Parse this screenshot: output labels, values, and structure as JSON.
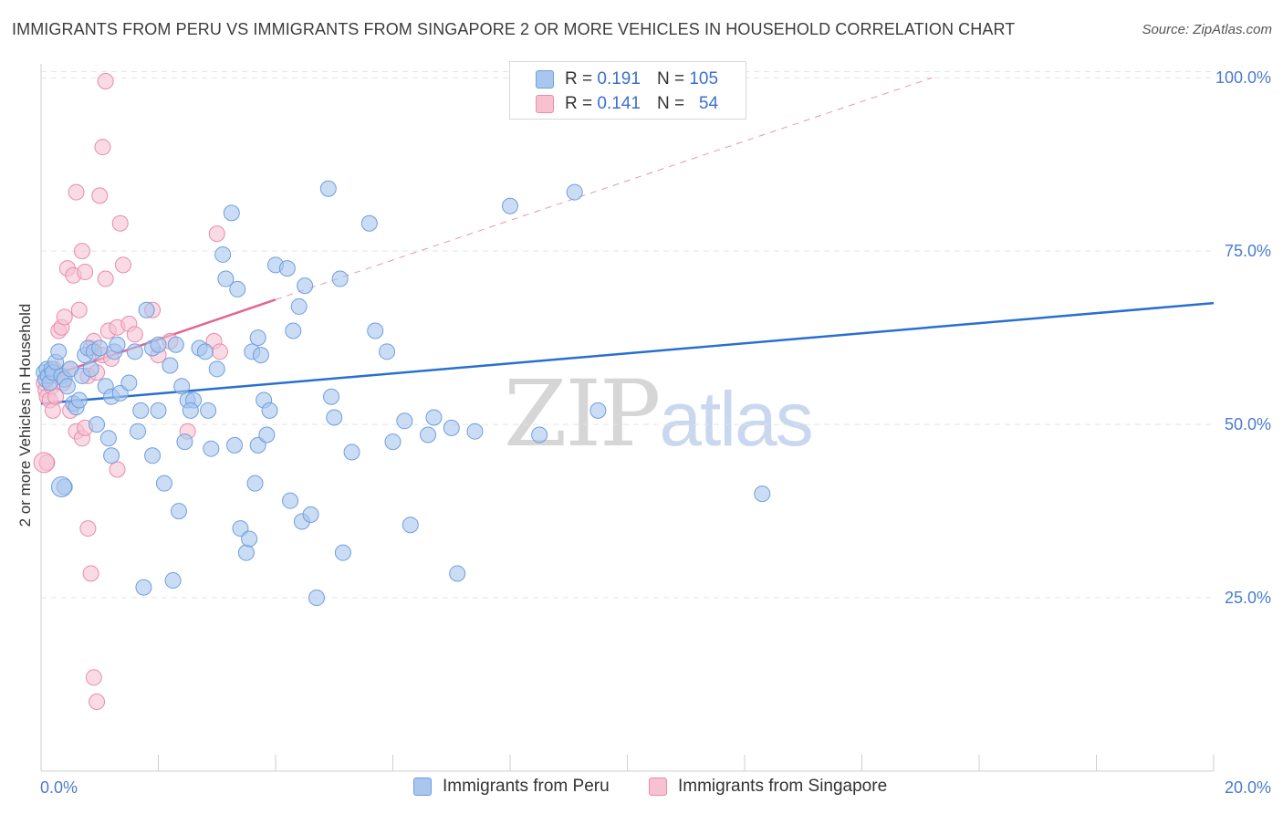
{
  "title": "IMMIGRANTS FROM PERU VS IMMIGRANTS FROM SINGAPORE 2 OR MORE VEHICLES IN HOUSEHOLD CORRELATION CHART",
  "source": "Source: ZipAtlas.com",
  "watermark": {
    "zip": "ZIP",
    "atlas": "atlas"
  },
  "legend": {
    "r_label": "R =",
    "n_label": "N =",
    "peru": {
      "r": "0.191",
      "n": "105"
    },
    "singapore": {
      "r": "0.141",
      "n": "54"
    }
  },
  "colors": {
    "peru_fill": "#a9c6ef",
    "peru_stroke": "#6f9fdd",
    "peru_line": "#2a6fd0",
    "sing_fill": "#f7c1d2",
    "sing_stroke": "#e88cab",
    "sing_line": "#e26595",
    "axis_text": "#4a7bd0",
    "grid": "#e3e3e3"
  },
  "chart_data": {
    "type": "scatter",
    "title": "IMMIGRANTS FROM PERU VS IMMIGRANTS FROM SINGAPORE 2 OR MORE VEHICLES IN HOUSEHOLD CORRELATION CHART",
    "xlabel": "",
    "ylabel": "2 or more Vehicles in Household",
    "xlim": [
      0,
      20
    ],
    "ylim": [
      0,
      102
    ],
    "x_tick_labels": [
      "0.0%",
      "20.0%"
    ],
    "y_ticks": [
      25,
      50,
      75,
      100
    ],
    "y_tick_labels": [
      "25.0%",
      "50.0%",
      "75.0%",
      "100.0%"
    ],
    "series": [
      {
        "name": "Immigrants from Peru",
        "points": [
          [
            0.05,
            57.5
          ],
          [
            0.08,
            56.5
          ],
          [
            0.1,
            58
          ],
          [
            0.12,
            57
          ],
          [
            0.15,
            56
          ],
          [
            0.18,
            58
          ],
          [
            0.2,
            57.5
          ],
          [
            0.25,
            59
          ],
          [
            0.3,
            60.5
          ],
          [
            0.35,
            57
          ],
          [
            0.4,
            56.5
          ],
          [
            0.45,
            55.5
          ],
          [
            0.5,
            58
          ],
          [
            0.55,
            53
          ],
          [
            0.6,
            52.5
          ],
          [
            0.65,
            53.5
          ],
          [
            0.7,
            57
          ],
          [
            0.75,
            60
          ],
          [
            0.8,
            61
          ],
          [
            0.85,
            58
          ],
          [
            0.9,
            60.5
          ],
          [
            1.0,
            61
          ],
          [
            1.1,
            55.5
          ],
          [
            1.2,
            54
          ],
          [
            1.25,
            60.5
          ],
          [
            1.3,
            61.5
          ],
          [
            1.35,
            54.5
          ],
          [
            1.5,
            56
          ],
          [
            1.6,
            60.5
          ],
          [
            1.7,
            52
          ],
          [
            1.8,
            66.5
          ],
          [
            1.9,
            61
          ],
          [
            2.0,
            61.5
          ],
          [
            2.2,
            58.5
          ],
          [
            2.3,
            61.5
          ],
          [
            2.4,
            55.5
          ],
          [
            2.5,
            53.5
          ],
          [
            2.7,
            61
          ],
          [
            2.8,
            60.5
          ],
          [
            2.85,
            52
          ],
          [
            3.0,
            58
          ],
          [
            3.1,
            74.5
          ],
          [
            3.15,
            71
          ],
          [
            3.25,
            80.5
          ],
          [
            3.35,
            69.5
          ],
          [
            3.6,
            60.5
          ],
          [
            3.7,
            62.5
          ],
          [
            3.75,
            60
          ],
          [
            3.8,
            53.5
          ],
          [
            3.9,
            52
          ],
          [
            4.0,
            73
          ],
          [
            4.2,
            72.5
          ],
          [
            4.3,
            63.5
          ],
          [
            4.4,
            67
          ],
          [
            4.5,
            70
          ],
          [
            4.9,
            84
          ],
          [
            4.95,
            54
          ],
          [
            5.0,
            51
          ],
          [
            5.1,
            71
          ],
          [
            5.3,
            46
          ],
          [
            5.6,
            79
          ],
          [
            5.7,
            63.5
          ],
          [
            5.9,
            60.5
          ],
          [
            6.0,
            47.5
          ],
          [
            6.2,
            50.5
          ],
          [
            6.3,
            35.5
          ],
          [
            6.6,
            48.5
          ],
          [
            6.7,
            51
          ],
          [
            7.0,
            49.5
          ],
          [
            7.1,
            28.5
          ],
          [
            7.4,
            49
          ],
          [
            8.0,
            81.5
          ],
          [
            8.5,
            48.5
          ],
          [
            9.0,
            100.5
          ],
          [
            9.1,
            83.5
          ],
          [
            9.5,
            52
          ],
          [
            10.0,
            100.5
          ],
          [
            12.3,
            40
          ],
          [
            0.4,
            41
          ],
          [
            1.2,
            45.5
          ],
          [
            1.65,
            49
          ],
          [
            1.9,
            45.5
          ],
          [
            2.0,
            52
          ],
          [
            2.1,
            41.5
          ],
          [
            2.35,
            37.5
          ],
          [
            2.45,
            47.5
          ],
          [
            2.6,
            53.5
          ],
          [
            2.9,
            46.5
          ],
          [
            3.3,
            47
          ],
          [
            3.4,
            35
          ],
          [
            3.5,
            31.5
          ],
          [
            3.55,
            33.5
          ],
          [
            3.65,
            41.5
          ],
          [
            3.7,
            47
          ],
          [
            3.85,
            48.5
          ],
          [
            4.25,
            39
          ],
          [
            4.45,
            36
          ],
          [
            4.6,
            37
          ],
          [
            4.7,
            25
          ],
          [
            5.15,
            31.5
          ],
          [
            2.55,
            52
          ],
          [
            1.75,
            26.5
          ],
          [
            0.95,
            50
          ],
          [
            1.15,
            48
          ],
          [
            2.25,
            27.5
          ]
        ],
        "trend": {
          "x0": 0.0,
          "y0": 53.0,
          "x1": 20.0,
          "y1": 67.5
        }
      },
      {
        "name": "Immigrants from Singapore",
        "points": [
          [
            0.05,
            56
          ],
          [
            0.08,
            55
          ],
          [
            0.1,
            54
          ],
          [
            0.12,
            57
          ],
          [
            0.15,
            53.5
          ],
          [
            0.18,
            55.5
          ],
          [
            0.2,
            52
          ],
          [
            0.22,
            58
          ],
          [
            0.25,
            54
          ],
          [
            0.28,
            57
          ],
          [
            0.3,
            63.5
          ],
          [
            0.35,
            64
          ],
          [
            0.38,
            56
          ],
          [
            0.4,
            65.5
          ],
          [
            0.45,
            72.5
          ],
          [
            0.5,
            58
          ],
          [
            0.55,
            71.5
          ],
          [
            0.6,
            83.5
          ],
          [
            0.65,
            66.5
          ],
          [
            0.7,
            75
          ],
          [
            0.75,
            72
          ],
          [
            0.8,
            57
          ],
          [
            0.85,
            61
          ],
          [
            0.9,
            62
          ],
          [
            0.95,
            57.5
          ],
          [
            1.0,
            83
          ],
          [
            1.05,
            60
          ],
          [
            1.1,
            71
          ],
          [
            1.15,
            63.5
          ],
          [
            1.2,
            59.5
          ],
          [
            1.3,
            64
          ],
          [
            1.35,
            79
          ],
          [
            1.4,
            73
          ],
          [
            1.5,
            64.5
          ],
          [
            1.6,
            63
          ],
          [
            1.9,
            66.5
          ],
          [
            2.0,
            60
          ],
          [
            2.2,
            62
          ],
          [
            2.5,
            49
          ],
          [
            2.95,
            62
          ],
          [
            3.0,
            77.5
          ],
          [
            0.5,
            52
          ],
          [
            0.6,
            49
          ],
          [
            0.7,
            48
          ],
          [
            0.75,
            49.5
          ],
          [
            0.8,
            35
          ],
          [
            0.85,
            28.5
          ],
          [
            0.9,
            13.5
          ],
          [
            0.95,
            10
          ],
          [
            1.05,
            90
          ],
          [
            1.1,
            99.5
          ],
          [
            1.3,
            43.5
          ],
          [
            0.1,
            44.5
          ],
          [
            3.05,
            60.5
          ]
        ],
        "trend": {
          "x0": 0.0,
          "y0": 56.5,
          "x1": 4.0,
          "y1": 68.0
        },
        "trend_extended": {
          "x0": 4.0,
          "y0": 68.0,
          "x1": 15.2,
          "y1": 100.0
        }
      }
    ]
  },
  "bottom_legend": {
    "peru": "Immigrants from Peru",
    "singapore": "Immigrants from Singapore"
  }
}
